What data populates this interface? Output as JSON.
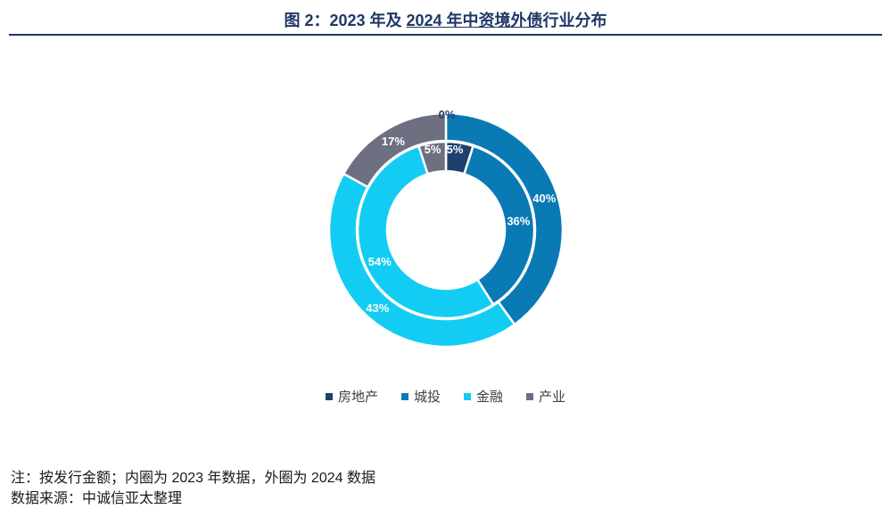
{
  "header": {
    "title_pre": "图 2：2023 年及 ",
    "title_ul": "2024 年中资境外债",
    "title_post": "行业分布"
  },
  "chart_data": {
    "type": "pie",
    "subtype": "double-donut",
    "categories": [
      "房地产",
      "城投",
      "金融",
      "产业"
    ],
    "colors": [
      "#1f3f6e",
      "#0a7ab5",
      "#13ccf3",
      "#6e7081"
    ],
    "series": [
      {
        "ring": "inner",
        "values": [
          5,
          36,
          54,
          5
        ],
        "labels": [
          "5%",
          "36%",
          "54%",
          "5%"
        ]
      },
      {
        "ring": "outer",
        "values": [
          0,
          40,
          43,
          17
        ],
        "labels": [
          "0%",
          "40%",
          "43%",
          "17%"
        ]
      }
    ],
    "legend_position": "bottom"
  },
  "footer": {
    "note": "注：按发行金额；内圈为 2023 年数据，外圈为 2024 数据",
    "source": "数据来源：中诚信亚太整理"
  }
}
